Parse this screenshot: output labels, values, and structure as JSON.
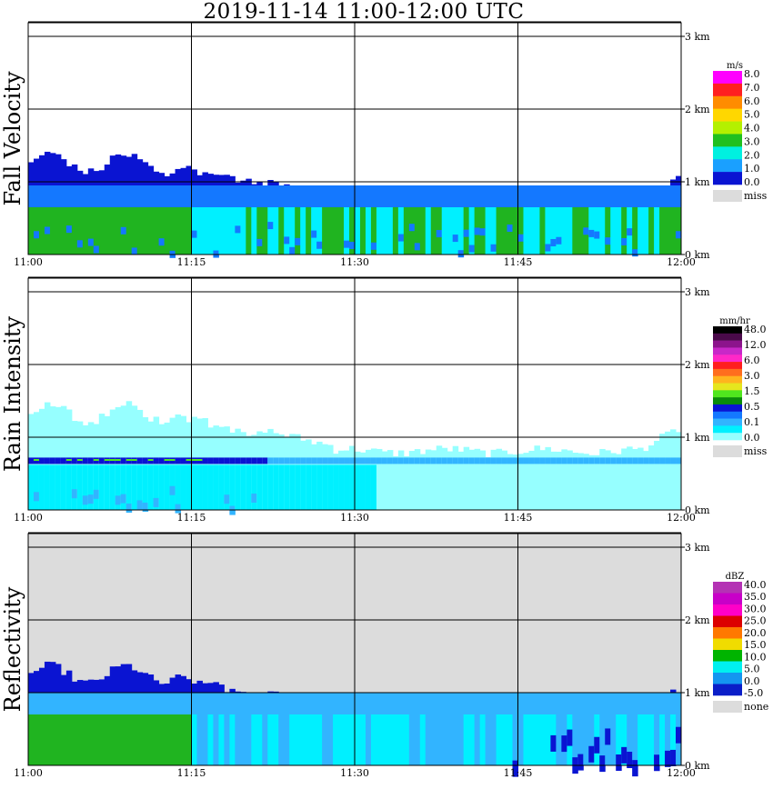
{
  "title": "2019-11-14   11:00-12:00 UTC",
  "colors": {
    "grid": "#000000",
    "miss": "#dcdcdc",
    "background": "#ffffff"
  },
  "chart_data": [
    {
      "type": "heatmap",
      "ylabel": "Fall Velocity",
      "xticks": [
        "11:00",
        "11:15",
        "11:30",
        "11:45",
        "12:00"
      ],
      "yticks": [
        "0 km",
        "1 km",
        "2 km",
        "3 km"
      ],
      "ylim": [
        0,
        3.2
      ],
      "xlim_minutes": [
        0,
        60
      ],
      "legend": {
        "unit": "m/s",
        "labels": [
          "8.0",
          "7.0",
          "6.0",
          "5.0",
          "4.0",
          "3.0",
          "2.0",
          "1.0",
          "0.0"
        ],
        "colors": [
          "#ff00ff",
          "#ff2020",
          "#ff8c00",
          "#ffd700",
          "#b4f000",
          "#20c020",
          "#00f0e0",
          "#1aa0ff",
          "#0a14d2"
        ],
        "miss_label": "miss"
      },
      "background_missing": false
    },
    {
      "type": "heatmap",
      "ylabel": "Rain Intensity",
      "xticks": [
        "11:00",
        "11:15",
        "11:30",
        "11:45",
        "12:00"
      ],
      "yticks": [
        "0 km",
        "1 km",
        "2 km",
        "3 km"
      ],
      "ylim": [
        0,
        3.2
      ],
      "xlim_minutes": [
        0,
        60
      ],
      "legend": {
        "unit": "mm/hr",
        "labels": [
          "48.0",
          "12.0",
          "6.0",
          "3.0",
          "1.5",
          "0.5",
          "0.1",
          "0.0"
        ],
        "colors": [
          "#000000",
          "#4a0a4a",
          "#8c148c",
          "#c828c8",
          "#ff28c8",
          "#ff1e1e",
          "#ff6e1e",
          "#ffb41e",
          "#e6e61e",
          "#50e61e",
          "#0a8c0a",
          "#0a14d2",
          "#1478ff",
          "#32b4ff",
          "#00f0ff",
          "#96ffff"
        ],
        "miss_label": "miss"
      },
      "background_missing": false
    },
    {
      "type": "heatmap",
      "ylabel": "Reflectivity",
      "xticks": [
        "11:00",
        "11:15",
        "11:30",
        "11:45",
        "12:00"
      ],
      "yticks": [
        "0 km",
        "1 km",
        "2 km",
        "3 km"
      ],
      "ylim": [
        0,
        3.2
      ],
      "xlim_minutes": [
        0,
        60
      ],
      "legend": {
        "unit": "dBZ",
        "labels": [
          "40.0",
          "35.0",
          "30.0",
          "25.0",
          "20.0",
          "15.0",
          "10.0",
          "5.0",
          "0.0",
          "-5.0"
        ],
        "colors": [
          "#b432b4",
          "#c800c8",
          "#ff00c8",
          "#dc0000",
          "#ff7800",
          "#f0dc00",
          "#00b400",
          "#00f0f0",
          "#1496f0",
          "#0a1ec8"
        ],
        "miss_label": "none"
      },
      "background_missing": true
    }
  ]
}
